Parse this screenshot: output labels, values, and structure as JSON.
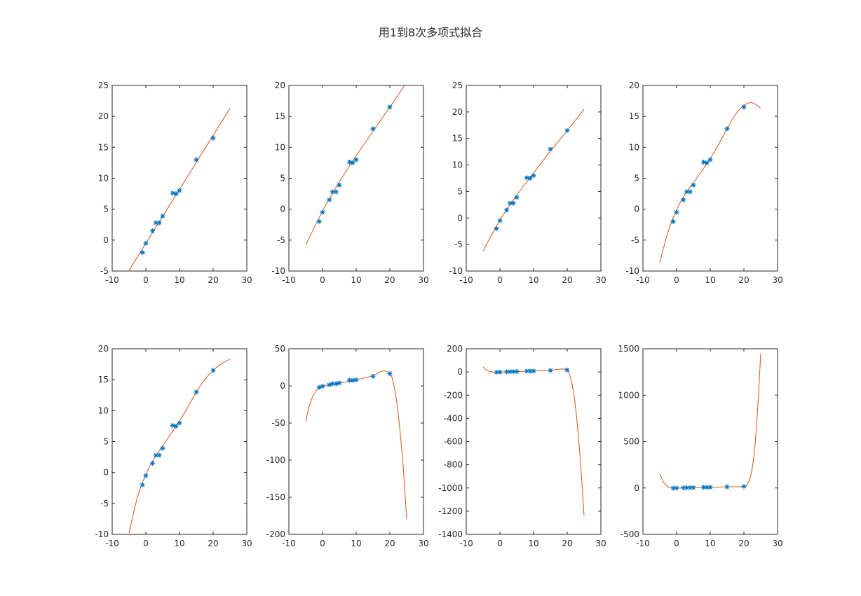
{
  "colors": {
    "data_marker": "#0072bd",
    "fit_line": "#d95319",
    "axes": "#262626"
  },
  "chart_data": {
    "type": "line",
    "title": "用1到8次多项式拟合",
    "samples": {
      "x": [
        -1,
        0,
        2,
        3,
        4,
        5,
        8,
        9,
        10,
        15,
        20
      ],
      "y": [
        -2,
        -0.5,
        1.5,
        2.8,
        2.8,
        3.9,
        7.6,
        7.5,
        8,
        13,
        16.5
      ]
    },
    "fit_x_range": [
      -5,
      25
    ],
    "subplots": [
      {
        "degree": 1,
        "xlim": [
          -10,
          30
        ],
        "ylim": [
          -5,
          25
        ],
        "xticks": [
          -10,
          0,
          10,
          20,
          30
        ],
        "yticks": [
          -5,
          0,
          5,
          10,
          15,
          20,
          25
        ],
        "fit_curve": {
          "x": [
            -5,
            25
          ],
          "y": [
            -4.9,
            21.3
          ]
        }
      },
      {
        "degree": 2,
        "xlim": [
          -10,
          30
        ],
        "ylim": [
          -10,
          20
        ],
        "xticks": [
          -10,
          0,
          10,
          20,
          30
        ],
        "yticks": [
          -10,
          -5,
          0,
          5,
          10,
          15,
          20
        ],
        "fit_curve": {
          "x": [
            -5,
            0,
            5,
            10,
            15,
            20,
            25
          ],
          "y": [
            -5.8,
            -0.3,
            4.4,
            8.6,
            12.6,
            16.5,
            20.5
          ]
        }
      },
      {
        "degree": 3,
        "xlim": [
          -10,
          30
        ],
        "ylim": [
          -10,
          25
        ],
        "xticks": [
          -10,
          0,
          10,
          20,
          30
        ],
        "yticks": [
          -10,
          -5,
          0,
          5,
          10,
          15,
          20,
          25
        ],
        "fit_curve": {
          "x": [
            -5,
            0,
            5,
            10,
            15,
            20,
            25
          ],
          "y": [
            -6.2,
            -0.4,
            4.3,
            8.5,
            12.6,
            16.5,
            20.5
          ]
        }
      },
      {
        "degree": 4,
        "xlim": [
          -10,
          30
        ],
        "ylim": [
          -10,
          20
        ],
        "xticks": [
          -10,
          0,
          10,
          20,
          30
        ],
        "yticks": [
          -10,
          -5,
          0,
          5,
          10,
          15,
          20
        ],
        "fit_curve": {
          "x": [
            -5,
            -2.5,
            0,
            2.5,
            5,
            7.5,
            10,
            12.5,
            15,
            17.5,
            20,
            22.5,
            25
          ],
          "y": [
            -8.6,
            -3.6,
            -0.1,
            2.4,
            4.3,
            6.2,
            8.2,
            10.5,
            13.0,
            15.3,
            16.8,
            17.2,
            16.3
          ]
        }
      },
      {
        "degree": 5,
        "xlim": [
          -10,
          30
        ],
        "ylim": [
          -10,
          20
        ],
        "xticks": [
          -10,
          0,
          10,
          20,
          30
        ],
        "yticks": [
          -10,
          -5,
          0,
          5,
          10,
          15,
          20
        ],
        "fit_curve": {
          "x": [
            -5,
            -2.5,
            0,
            2.5,
            5,
            7.5,
            10,
            12.5,
            15,
            17.5,
            20,
            22.5,
            25
          ],
          "y": [
            -9.8,
            -4.0,
            -0.3,
            2.3,
            4.3,
            6.3,
            8.3,
            10.6,
            13.0,
            15.0,
            16.5,
            17.6,
            18.3
          ]
        }
      },
      {
        "degree": 6,
        "xlim": [
          -10,
          30
        ],
        "ylim": [
          -200,
          50
        ],
        "xticks": [
          -10,
          0,
          10,
          20,
          30
        ],
        "yticks": [
          -200,
          -150,
          -100,
          -50,
          0,
          50
        ],
        "fit_curve": {
          "x": [
            -5,
            -4,
            -3,
            -2,
            -1,
            0,
            2,
            5,
            10,
            15,
            18,
            20,
            21,
            22,
            23,
            24,
            25
          ],
          "y": [
            -48,
            -28,
            -15,
            -7,
            -2,
            -0.5,
            1.5,
            4,
            8,
            14,
            20,
            17,
            5,
            -20,
            -60,
            -110,
            -180
          ]
        }
      },
      {
        "degree": 7,
        "xlim": [
          -10,
          30
        ],
        "ylim": [
          -1400,
          200
        ],
        "xticks": [
          -10,
          0,
          10,
          20,
          30
        ],
        "yticks": [
          -1400,
          -1200,
          -1000,
          -800,
          -600,
          -400,
          -200,
          0,
          200
        ],
        "fit_curve": {
          "x": [
            -5,
            -4,
            -2,
            0,
            5,
            10,
            15,
            18,
            20,
            21,
            22,
            23,
            24,
            25
          ],
          "y": [
            45,
            15,
            0,
            -1,
            4,
            8,
            15,
            25,
            15,
            -50,
            -200,
            -450,
            -800,
            -1240
          ]
        }
      },
      {
        "degree": 8,
        "xlim": [
          -10,
          30
        ],
        "ylim": [
          -500,
          1500
        ],
        "xticks": [
          -10,
          0,
          10,
          20,
          30
        ],
        "yticks": [
          -500,
          0,
          500,
          1000,
          1500
        ],
        "fit_curve": {
          "x": [
            -5,
            -4,
            -3,
            -2,
            0,
            5,
            10,
            15,
            20,
            21,
            22,
            23,
            24,
            25
          ],
          "y": [
            155,
            70,
            25,
            5,
            -2,
            4,
            8,
            13,
            16,
            40,
            130,
            350,
            800,
            1450
          ]
        }
      }
    ]
  }
}
